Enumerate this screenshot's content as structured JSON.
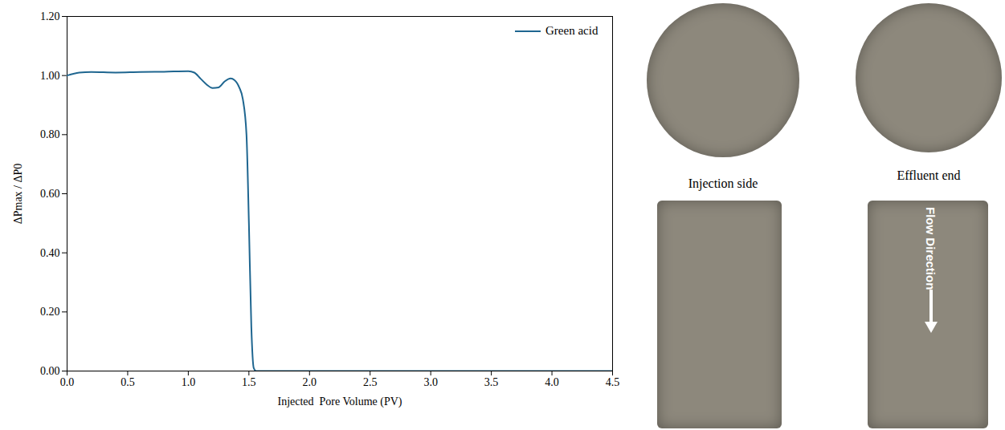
{
  "chart_data": {
    "type": "line",
    "x_label": "Injected  Pore Volume (PV)",
    "y_label": "ΔPmax / ΔP0",
    "xlim": [
      0,
      4.5
    ],
    "xticks": [
      {
        "value": 0,
        "label": "0.0"
      },
      {
        "value": 0.5,
        "label": "0.5"
      },
      {
        "value": 1,
        "label": "1.0"
      },
      {
        "value": 1.5,
        "label": "1.5"
      },
      {
        "value": 2,
        "label": "2.0"
      },
      {
        "value": 2.5,
        "label": "2.5"
      },
      {
        "value": 3,
        "label": "3.0"
      },
      {
        "value": 3.5,
        "label": "3.5"
      },
      {
        "value": 4,
        "label": "4.0"
      },
      {
        "value": 4.5,
        "label": "4.5"
      }
    ],
    "ylim": [
      0,
      1.2
    ],
    "yticks": [
      {
        "value": 0,
        "label": "0.00"
      },
      {
        "value": 0.2,
        "label": "0.20"
      },
      {
        "value": 0.4,
        "label": "0.40"
      },
      {
        "value": 0.6,
        "label": "0.60"
      },
      {
        "value": 0.8,
        "label": "0.80"
      },
      {
        "value": 1,
        "label": "1.00"
      },
      {
        "value": 1.2,
        "label": "1.20"
      }
    ],
    "grid": false,
    "legend": "top-right",
    "x": [
      0,
      0.1,
      0.2,
      0.4,
      0.6,
      0.8,
      1.0,
      1.05,
      1.1,
      1.15,
      1.2,
      1.25,
      1.3,
      1.35,
      1.38,
      1.42,
      1.45,
      1.48,
      1.5,
      1.52,
      1.54,
      1.56,
      2.0,
      4.5
    ],
    "series": [
      {
        "name": "Green acid",
        "color": "#1f6690",
        "marker": "none",
        "line_style": "solid",
        "values": [
          1.0,
          1.01,
          1.012,
          1.01,
          1.012,
          1.013,
          1.015,
          1.01,
          0.99,
          0.97,
          0.958,
          0.96,
          0.98,
          0.99,
          0.985,
          0.96,
          0.92,
          0.8,
          0.5,
          0.15,
          0.01,
          0.0,
          0.0,
          0.0
        ]
      }
    ]
  },
  "photos": {
    "injection_caption": "Injection side",
    "effluent_caption": "Effluent end",
    "flow_label": "Flow Direction"
  }
}
